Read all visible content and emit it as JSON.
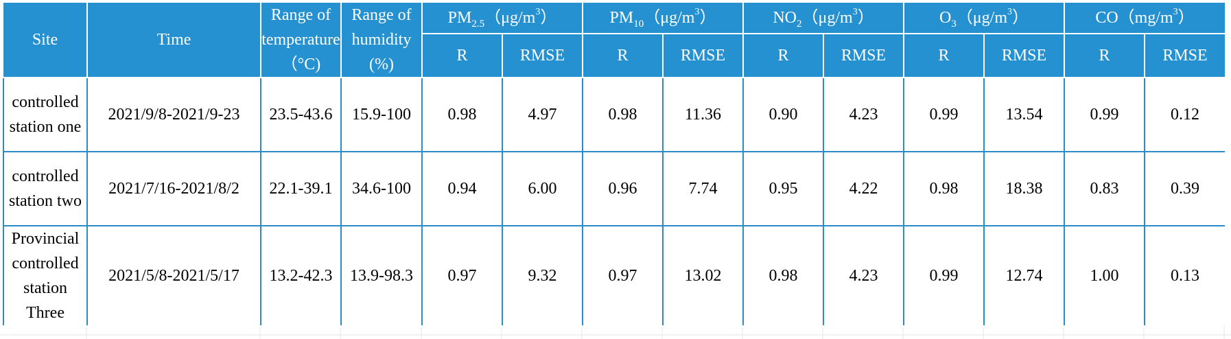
{
  "table": {
    "header": {
      "site": "Site",
      "time": "Time",
      "temp_range": "Range of temperature（°C)",
      "humidity_range": "Range of humidity (%)",
      "pollutants": [
        {
          "base": "PM",
          "sub": "2.5",
          "unit_pre": "（μg/m",
          "unit_sup": "3",
          "unit_post": "）"
        },
        {
          "base": "PM",
          "sub": "10",
          "unit_pre": "（μg/m",
          "unit_sup": "3",
          "unit_post": "）"
        },
        {
          "base": "NO",
          "sub": "2",
          "unit_pre": "（μg/m",
          "unit_sup": "3",
          "unit_post": "）"
        },
        {
          "base": "O",
          "sub": "3",
          "unit_pre": "（μg/m",
          "unit_sup": "3",
          "unit_post": "）"
        },
        {
          "base": "CO",
          "sub": "",
          "unit_pre": "（mg/m",
          "unit_sup": "3",
          "unit_post": "）"
        }
      ],
      "r_label": "R",
      "rmse_label": "RMSE"
    },
    "rows": [
      {
        "site": "controlled station one",
        "time": "2021/9/8-2021/9-23",
        "temp": "23.5-43.6",
        "humidity": "15.9-100",
        "values": [
          "0.98",
          "4.97",
          "0.98",
          "11.36",
          "0.90",
          "4.23",
          "0.99",
          "13.54",
          "0.99",
          "0.12"
        ]
      },
      {
        "site": "controlled station two",
        "time": "2021/7/16-2021/8/2",
        "temp": "22.1-39.1",
        "humidity": "34.6-100",
        "values": [
          "0.94",
          "6.00",
          "0.96",
          "7.74",
          "0.95",
          "4.22",
          "0.98",
          "18.38",
          "0.83",
          "0.39"
        ]
      },
      {
        "site": "Provincial controlled station Three",
        "time": "2021/5/8-2021/5/17",
        "temp": "13.2-42.3",
        "humidity": "13.9-98.3",
        "values": [
          "0.97",
          "9.32",
          "0.97",
          "13.02",
          "0.98",
          "4.23",
          "0.99",
          "12.74",
          "1.00",
          "0.13"
        ]
      }
    ]
  }
}
